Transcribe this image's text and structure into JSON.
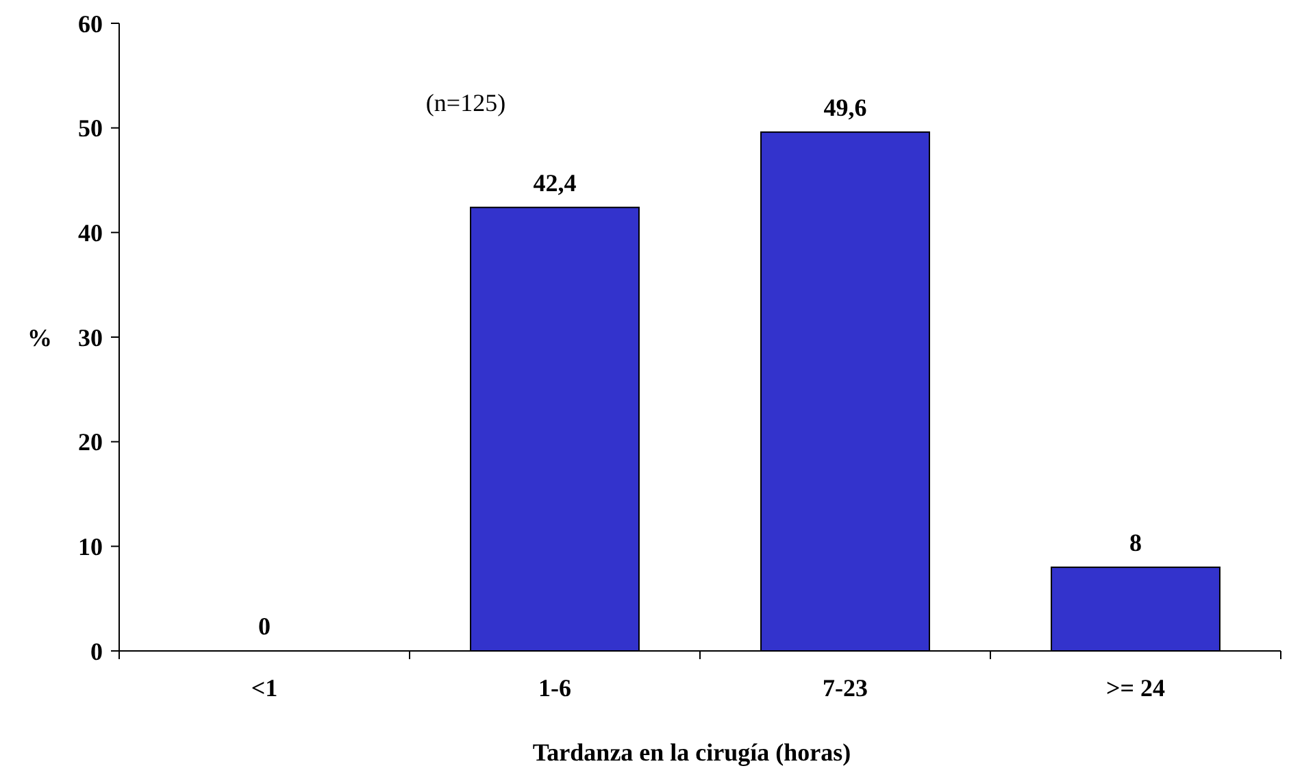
{
  "chart_data": {
    "type": "bar",
    "xlabel": "Tardanza en la cirugía (horas)",
    "ylabel": "%",
    "categories": [
      "<1",
      "1-6",
      "7-23",
      ">= 24"
    ],
    "values": [
      0,
      42.4,
      49.6,
      8
    ],
    "color": "#3333cc",
    "ylim": [
      0,
      60
    ],
    "yticks": [
      0,
      10,
      20,
      30,
      40,
      50,
      60
    ],
    "value_labels": [
      "0",
      "42,4",
      "49,6",
      "8"
    ],
    "annotations": [
      "(n=125)"
    ],
    "grid": false
  }
}
